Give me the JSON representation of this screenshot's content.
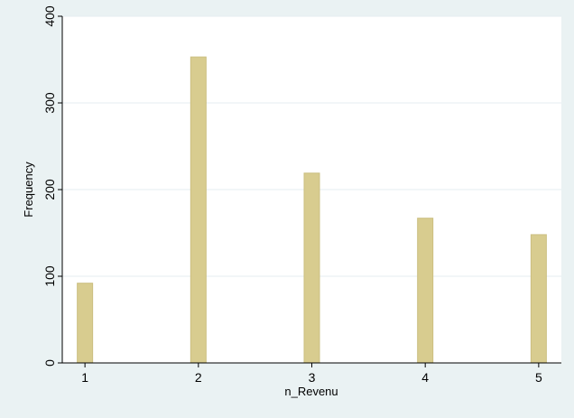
{
  "chart_data": {
    "type": "bar",
    "title": "",
    "xlabel": "n_Revenu",
    "ylabel": "Frequency",
    "x": [
      1,
      2,
      3,
      4,
      5
    ],
    "values": [
      92,
      353,
      219,
      167,
      148
    ],
    "xlim": [
      0.8,
      5.2
    ],
    "ylim": [
      0,
      400
    ],
    "x_ticks": [
      1,
      2,
      3,
      4,
      5
    ],
    "y_ticks": [
      0,
      100,
      200,
      300,
      400
    ],
    "grid": "horizontal",
    "legend": "none",
    "colors": {
      "bar_fill": "#d8cc8f",
      "bar_stroke": "#cbbf80",
      "plot_background": "#ffffff",
      "figure_background": "#eaf2f3",
      "grid": "#e6eef0",
      "axis": "#000000"
    }
  }
}
